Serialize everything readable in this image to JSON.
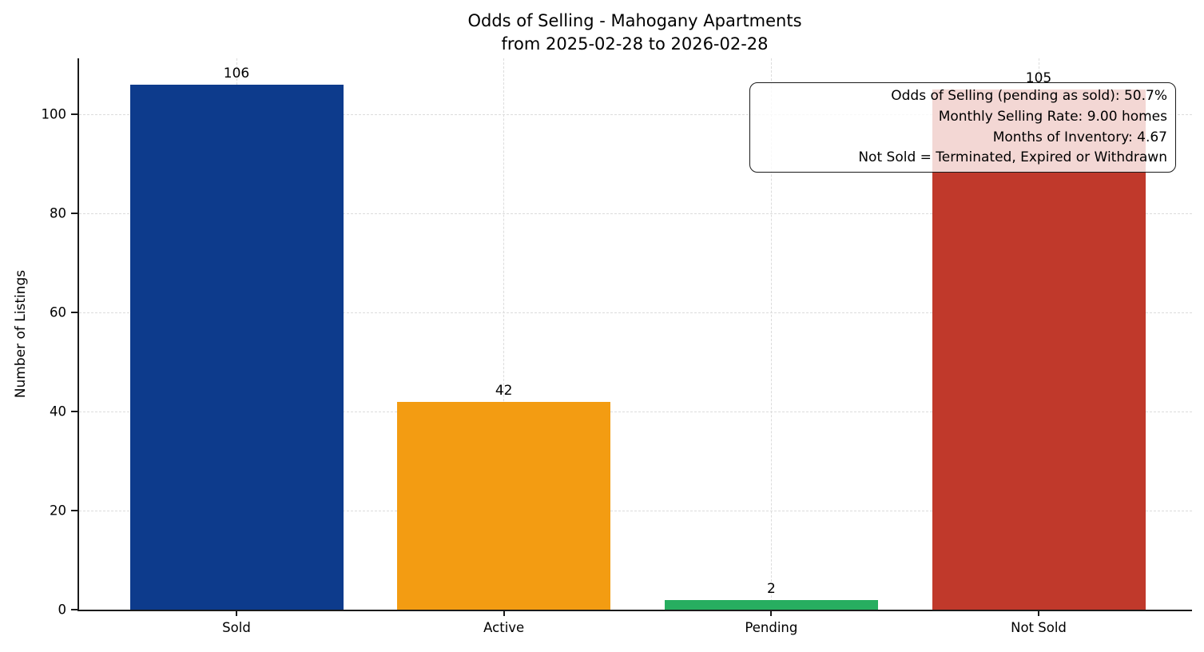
{
  "title": {
    "line1": "Odds of Selling - Mahogany Apartments",
    "line2": "from 2025-02-28 to 2026-02-28"
  },
  "annotation": {
    "lines": [
      "Odds of Selling (pending as sold): 50.7%",
      "Monthly Selling Rate: 9.00 homes",
      "Months of Inventory: 4.67",
      "Not Sold = Terminated, Expired or Withdrawn"
    ]
  },
  "chart_data": {
    "type": "bar",
    "title": "Odds of Selling - Mahogany Apartments\nfrom 2025-02-28 to 2026-02-28",
    "categories": [
      "Sold",
      "Active",
      "Pending",
      "Not Sold"
    ],
    "values": [
      106,
      42,
      2,
      105
    ],
    "value_labels": [
      "106",
      "42",
      "2",
      "105"
    ],
    "bar_colors": [
      "#0d3b8c",
      "#f39c12",
      "#27ae60",
      "#c0392b"
    ],
    "xlabel": "",
    "ylabel": "Number of Listings",
    "ylim": [
      0,
      111.6
    ],
    "yticks": [
      0,
      20,
      40,
      60,
      80,
      100
    ],
    "grid": "dashed, horizontal at yticks and vertical at category centers",
    "legend": "none",
    "annotation_box": {
      "position": "top-right",
      "lines": [
        "Odds of Selling (pending as sold): 50.7%",
        "Monthly Selling Rate: 9.00 homes",
        "Months of Inventory: 4.67",
        "Not Sold = Terminated, Expired or Withdrawn"
      ]
    }
  }
}
